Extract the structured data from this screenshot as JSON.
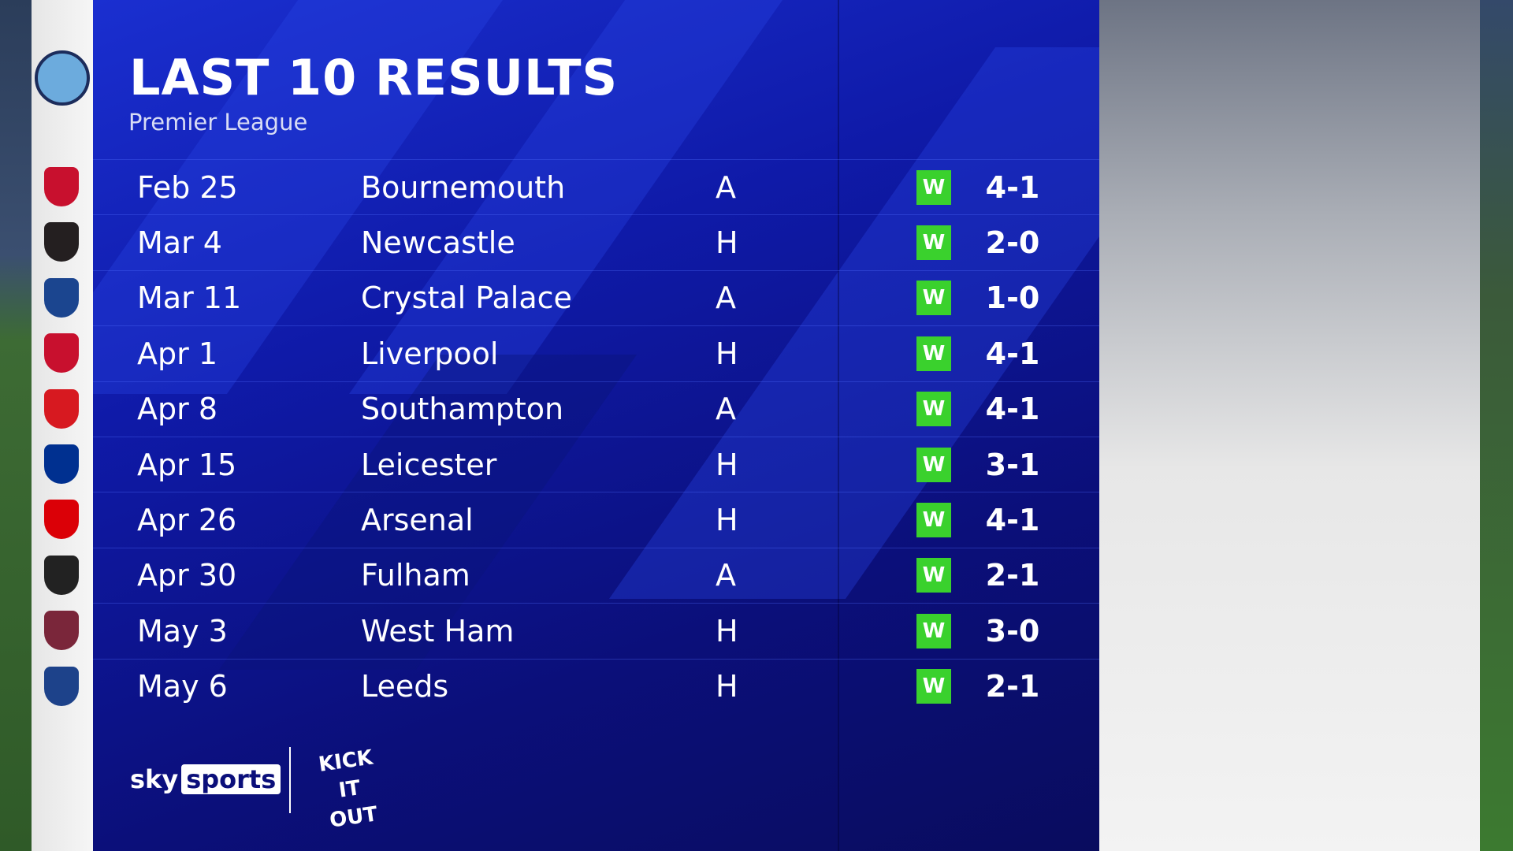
{
  "header": {
    "title": "LAST 10 RESULTS",
    "subtitle": "Premier League"
  },
  "colors": {
    "win_badge": "#3ad12d",
    "panel": "#0f1aa8"
  },
  "team_logo": "manchester-city-crest",
  "results": [
    {
      "date": "Feb 25",
      "opponent": "Bournemouth",
      "venue": "A",
      "result": "W",
      "score": "4-1",
      "crest": "bournemouth-crest",
      "color": "#c8102e"
    },
    {
      "date": "Mar 4",
      "opponent": "Newcastle",
      "venue": "H",
      "result": "W",
      "score": "2-0",
      "crest": "newcastle-crest",
      "color": "#241f20"
    },
    {
      "date": "Mar 11",
      "opponent": "Crystal Palace",
      "venue": "A",
      "result": "W",
      "score": "1-0",
      "crest": "crystal-palace-crest",
      "color": "#1b458f"
    },
    {
      "date": "Apr 1",
      "opponent": "Liverpool",
      "venue": "H",
      "result": "W",
      "score": "4-1",
      "crest": "liverpool-crest",
      "color": "#c8102e"
    },
    {
      "date": "Apr 8",
      "opponent": "Southampton",
      "venue": "A",
      "result": "W",
      "score": "4-1",
      "crest": "southampton-crest",
      "color": "#d71920"
    },
    {
      "date": "Apr 15",
      "opponent": "Leicester",
      "venue": "H",
      "result": "W",
      "score": "3-1",
      "crest": "leicester-crest",
      "color": "#003090"
    },
    {
      "date": "Apr 26",
      "opponent": "Arsenal",
      "venue": "H",
      "result": "W",
      "score": "4-1",
      "crest": "arsenal-crest",
      "color": "#db0007"
    },
    {
      "date": "Apr 30",
      "opponent": "Fulham",
      "venue": "A",
      "result": "W",
      "score": "2-1",
      "crest": "fulham-crest",
      "color": "#222222"
    },
    {
      "date": "May 3",
      "opponent": "West Ham",
      "venue": "H",
      "result": "W",
      "score": "3-0",
      "crest": "west-ham-crest",
      "color": "#7a263a"
    },
    {
      "date": "May 6",
      "opponent": "Leeds",
      "venue": "H",
      "result": "W",
      "score": "2-1",
      "crest": "leeds-crest",
      "color": "#1d428a"
    }
  ],
  "footer": {
    "brand_sky": "sky",
    "brand_sports": "sports",
    "kick_it_out": "KICK IT OUT"
  }
}
